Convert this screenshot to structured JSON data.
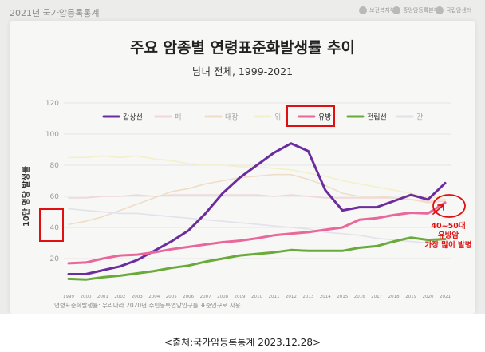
{
  "header": {
    "series_title": "2021년 국가암등록통계",
    "logos": [
      "보건복지부",
      "중앙암등록본부",
      "국립암센터"
    ]
  },
  "chart_data": {
    "type": "line",
    "title": "주요 암종별 연령표준화발생률 추이",
    "subtitle": "남녀 전체, 1999-2021",
    "ylabel": "10만 명당 발생률",
    "xlabel": "",
    "ylim": [
      0,
      120
    ],
    "yticks": [
      20,
      40,
      60,
      80,
      100,
      120
    ],
    "grid": true,
    "legend_position": "top",
    "x": [
      "1999",
      "2000",
      "2001",
      "2002",
      "2003",
      "2004",
      "2005",
      "2006",
      "2007",
      "2008",
      "2009",
      "2010",
      "2011",
      "2012",
      "2013",
      "2014",
      "2015",
      "2016",
      "2017",
      "2018",
      "2019",
      "2020",
      "2021"
    ],
    "series": [
      {
        "name": "갑상선",
        "color": "#6b2d9e",
        "highlight": true,
        "values": [
          10,
          10,
          12.5,
          15,
          19,
          25,
          31,
          38,
          49,
          62,
          72,
          80,
          88,
          94,
          89,
          64,
          51,
          53,
          53,
          57,
          61,
          58,
          68.5
        ]
      },
      {
        "name": "폐",
        "color": "#f2d6dc",
        "highlight": false,
        "values": [
          59,
          59,
          60,
          60,
          61,
          60,
          61,
          61,
          61,
          61,
          61,
          61,
          60,
          61,
          60,
          59,
          59,
          59,
          59,
          59,
          58,
          57,
          58
        ]
      },
      {
        "name": "대장",
        "color": "#f0ddc6",
        "highlight": false,
        "values": [
          42,
          44,
          47,
          51,
          55,
          59,
          63,
          65,
          68,
          70,
          72,
          73,
          74,
          74,
          71,
          67,
          62,
          60,
          60,
          59,
          58,
          56,
          57
        ]
      },
      {
        "name": "위",
        "color": "#f3f0cc",
        "highlight": false,
        "values": [
          85,
          85,
          86,
          85,
          86,
          84,
          83,
          81,
          80,
          80,
          79,
          79,
          78,
          77,
          75,
          73,
          70,
          68,
          66,
          64,
          62,
          59,
          60
        ]
      },
      {
        "name": "유방",
        "color": "#e9679b",
        "highlight": true,
        "values": [
          17,
          17.5,
          20,
          22,
          22.5,
          24,
          26,
          27.5,
          29,
          30.5,
          31.5,
          33,
          35,
          36,
          37,
          38.5,
          40,
          45,
          46,
          48,
          49.5,
          49,
          56
        ]
      },
      {
        "name": "전립선",
        "color": "#6aaa3a",
        "highlight": true,
        "values": [
          7,
          6.5,
          8,
          9,
          10.5,
          12,
          14,
          15.5,
          18,
          20,
          22,
          23,
          24,
          25.5,
          25,
          25,
          25,
          27,
          28,
          31,
          33.5,
          32,
          32.5
        ]
      },
      {
        "name": "간",
        "color": "#e2e2ea",
        "highlight": false,
        "values": [
          52,
          51,
          50,
          49,
          49,
          48,
          47,
          46,
          45,
          44,
          43,
          42,
          41,
          40,
          39,
          37,
          36,
          35,
          33,
          32,
          31,
          30,
          30
        ]
      }
    ],
    "annotation": {
      "line1": "40~50대",
      "line2": "유방암",
      "line3": "가장 많이 발병",
      "color": "#e01010"
    }
  },
  "source_note": "연령표준화발생률: 우리나라 2020년 주민등록연앙인구를 표준인구로 사용",
  "caption": "<출처:국가암등록통계  2023.12.28>"
}
